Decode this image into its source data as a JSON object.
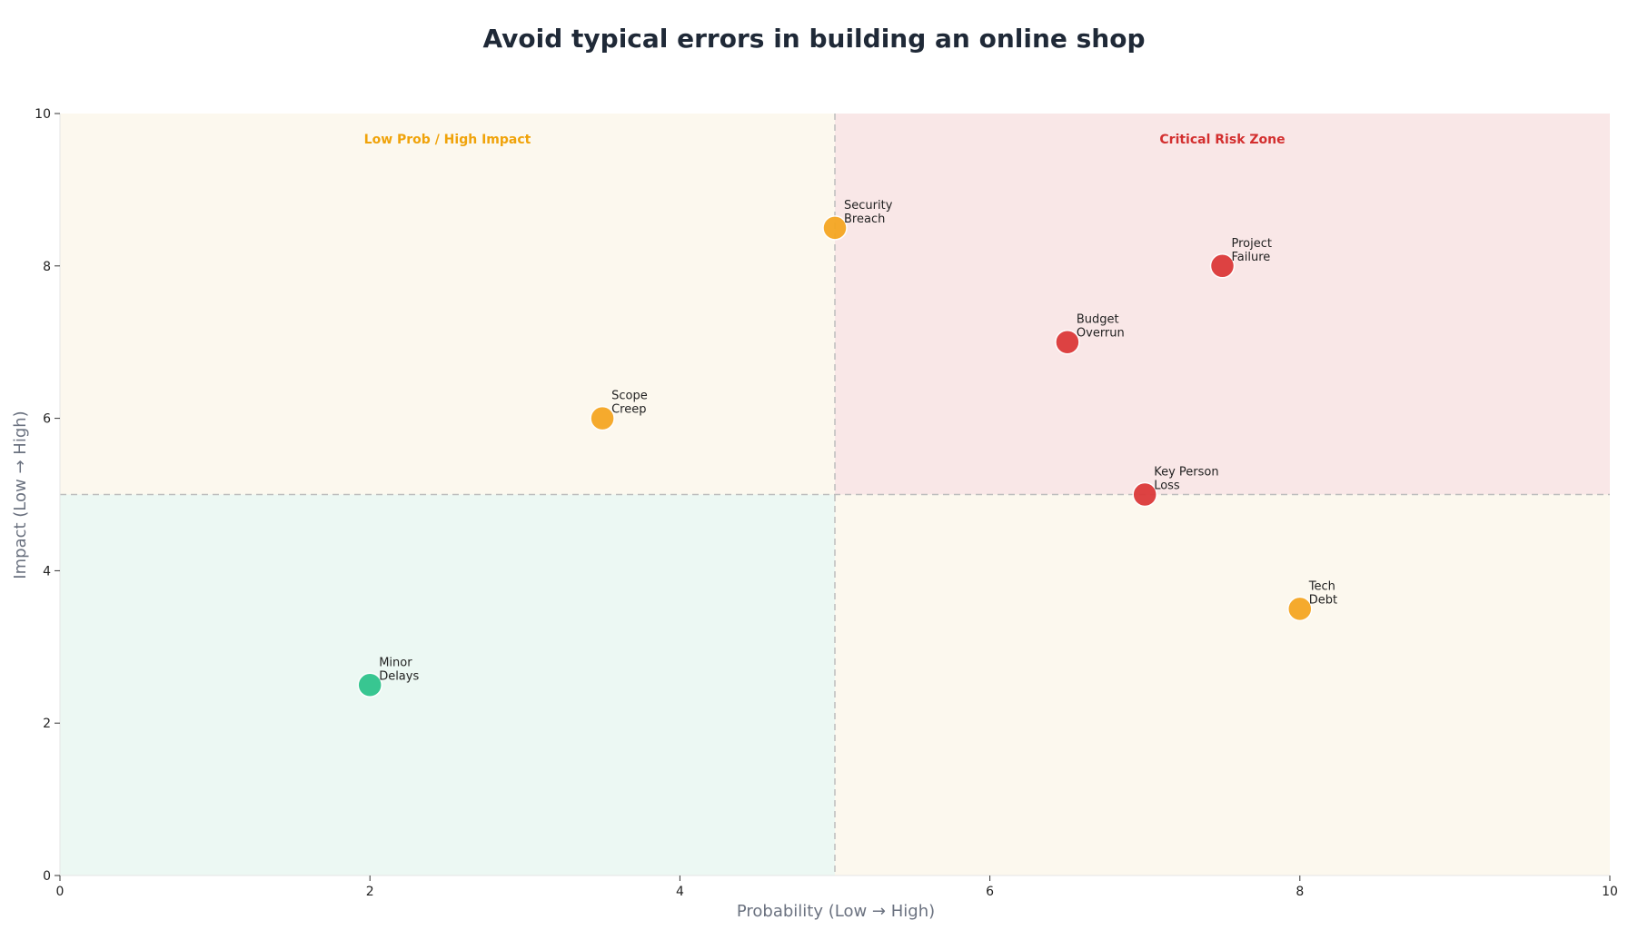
{
  "chart_data": {
    "type": "scatter",
    "title": "Avoid typical errors in building an online shop",
    "xlabel": "Probability (Low → High)",
    "ylabel": "Impact (Low → High)",
    "xlim": [
      0,
      10
    ],
    "ylim": [
      0,
      10
    ],
    "xticks": [
      0,
      2,
      4,
      6,
      8,
      10
    ],
    "yticks": [
      0,
      2,
      4,
      6,
      8,
      10
    ],
    "grid": false,
    "thresholds": {
      "x": 5,
      "y": 5
    },
    "quadrants": [
      {
        "id": "low-low",
        "x": [
          0,
          5
        ],
        "y": [
          0,
          5
        ],
        "color": "#ecf8f3",
        "label": ""
      },
      {
        "id": "low-high",
        "x": [
          0,
          5
        ],
        "y": [
          5,
          10
        ],
        "color": "#fcf8ee",
        "label": "Low Prob / High Impact",
        "label_color": "#f0a30a"
      },
      {
        "id": "high-low",
        "x": [
          5,
          10
        ],
        "y": [
          0,
          5
        ],
        "color": "#fcf8ee",
        "label": ""
      },
      {
        "id": "high-high",
        "x": [
          5,
          10
        ],
        "y": [
          5,
          10
        ],
        "color": "#f9e7e7",
        "label": "Critical Risk Zone",
        "label_color": "#d32f2f"
      }
    ],
    "colors": {
      "high": "#dc3a3a",
      "medium": "#f5a623",
      "low": "#2fc48c",
      "divider": "#bdbdbd"
    },
    "points": [
      {
        "name": "Minor Delays",
        "lines": [
          "Minor",
          "Delays"
        ],
        "x": 2.0,
        "y": 2.5,
        "level": "low"
      },
      {
        "name": "Scope Creep",
        "lines": [
          "Scope",
          "Creep"
        ],
        "x": 3.5,
        "y": 6.0,
        "level": "medium"
      },
      {
        "name": "Security Breach",
        "lines": [
          "Security",
          "Breach"
        ],
        "x": 5.0,
        "y": 8.5,
        "level": "medium"
      },
      {
        "name": "Budget Overrun",
        "lines": [
          "Budget",
          "Overrun"
        ],
        "x": 6.5,
        "y": 7.0,
        "level": "high"
      },
      {
        "name": "Key Person Loss",
        "lines": [
          "Key Person",
          "Loss"
        ],
        "x": 7.0,
        "y": 5.0,
        "level": "high"
      },
      {
        "name": "Project Failure",
        "lines": [
          "Project",
          "Failure"
        ],
        "x": 7.5,
        "y": 8.0,
        "level": "high"
      },
      {
        "name": "Tech Debt",
        "lines": [
          "Tech",
          "Debt"
        ],
        "x": 8.0,
        "y": 3.5,
        "level": "medium"
      }
    ]
  }
}
